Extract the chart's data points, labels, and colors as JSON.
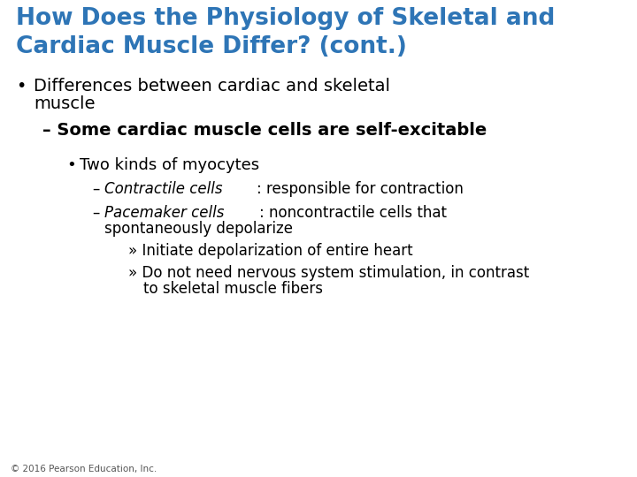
{
  "title_line1": "How Does the Physiology of Skeletal and",
  "title_line2": "Cardiac Muscle Differ? (cont.)",
  "title_color": "#2E75B6",
  "bg_color": "#FFFFFF",
  "footer": "© 2016 Pearson Education, Inc.",
  "text_color": "#000000",
  "title_fontsize": 19,
  "body_fontsize": 13,
  "sub_fontsize": 14,
  "small_fontsize": 12,
  "footer_fontsize": 7.5
}
